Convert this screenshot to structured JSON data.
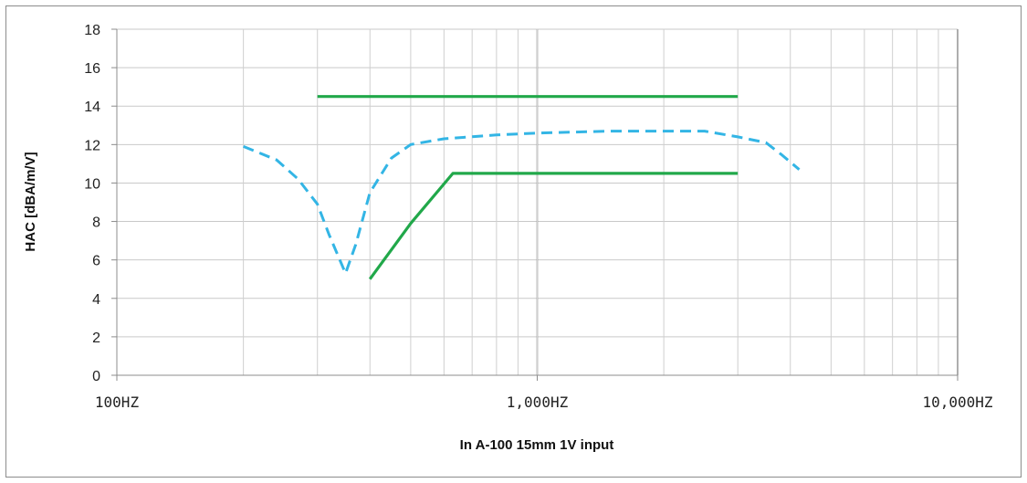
{
  "chart_data": {
    "type": "line",
    "title": "",
    "xlabel": "In A-100 15mm 1V input",
    "ylabel": "HAC [dBA/m/V]",
    "x_scale": "log",
    "xlim": [
      100,
      10000
    ],
    "ylim": [
      0,
      18
    ],
    "y_ticks": [
      "0",
      "2",
      "4",
      "6",
      "8",
      "10",
      "12",
      "14",
      "16",
      "18"
    ],
    "x_ticks": [
      {
        "value": 100,
        "label": "100HZ"
      },
      {
        "value": 1000,
        "label": "1,000HZ"
      },
      {
        "value": 10000,
        "label": "10,000HZ"
      }
    ],
    "grid": true,
    "legend": "none",
    "series": [
      {
        "style": "dashed",
        "color": "#33b5e5",
        "points": [
          [
            200,
            11.9
          ],
          [
            240,
            11.2
          ],
          [
            270,
            10.2
          ],
          [
            300,
            8.9
          ],
          [
            320,
            7.3
          ],
          [
            350,
            5.3
          ],
          [
            370,
            6.8
          ],
          [
            400,
            9.5
          ],
          [
            450,
            11.3
          ],
          [
            500,
            12.0
          ],
          [
            600,
            12.3
          ],
          [
            800,
            12.5
          ],
          [
            1000,
            12.6
          ],
          [
            1500,
            12.7
          ],
          [
            2000,
            12.7
          ],
          [
            2500,
            12.7
          ],
          [
            3000,
            12.4
          ],
          [
            3500,
            12.1
          ],
          [
            3800,
            11.5
          ],
          [
            4200,
            10.7
          ]
        ]
      },
      {
        "style": "solid",
        "color": "#21a84a",
        "points": [
          [
            300,
            14.5
          ],
          [
            3000,
            14.5
          ]
        ]
      },
      {
        "style": "solid",
        "color": "#21a84a",
        "points": [
          [
            400,
            5.0
          ],
          [
            500,
            7.9
          ],
          [
            630,
            10.5
          ],
          [
            3000,
            10.5
          ]
        ]
      }
    ]
  }
}
